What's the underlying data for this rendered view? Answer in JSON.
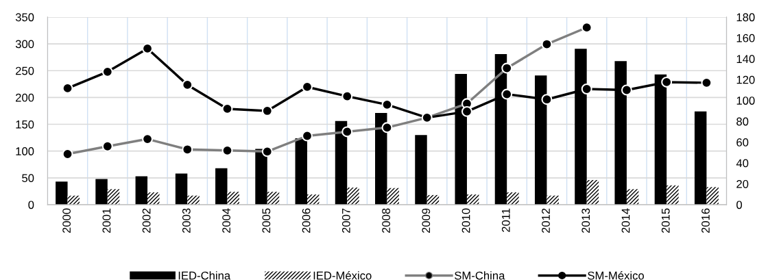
{
  "chart_data": {
    "type": "bar",
    "categories": [
      "2000",
      "2001",
      "2002",
      "2003",
      "2004",
      "2005",
      "2006",
      "2007",
      "2008",
      "2009",
      "2010",
      "2011",
      "2012",
      "2013",
      "2014",
      "2015",
      "2016"
    ],
    "series": [
      {
        "name": "IED-China",
        "color": "#000000",
        "values": [
          43,
          48,
          53,
          58,
          68,
          104,
          124,
          156,
          171,
          130,
          244,
          281,
          241,
          291,
          268,
          243,
          174
        ]
      },
      {
        "name": "IED-México",
        "color": "#000000",
        "values": [
          17,
          29,
          23,
          17,
          24,
          24,
          19,
          32,
          31,
          18,
          19,
          23,
          17,
          46,
          29,
          36,
          33
        ]
      },
      {
        "name": "SM-China",
        "type": "line",
        "axis": "y2",
        "color": "#7f7f7f",
        "values": [
          48.6,
          56,
          63,
          53,
          52,
          51,
          66,
          70,
          74,
          83.5,
          97,
          131,
          154,
          170,
          null,
          null,
          null
        ]
      },
      {
        "name": "SM-México",
        "type": "line",
        "axis": "y2",
        "color": "#000000",
        "values": [
          111.7,
          127.5,
          149.8,
          115,
          92,
          90,
          113,
          104,
          96,
          83.5,
          89.4,
          106,
          101,
          111,
          110,
          117.6,
          117
        ]
      }
    ],
    "ylim": [
      0,
      350
    ],
    "yticks": [
      0,
      50,
      100,
      150,
      200,
      250,
      300,
      350
    ],
    "y2lim": [
      0,
      180
    ],
    "y2ticks": [
      0,
      20,
      40,
      60,
      80,
      100,
      120,
      140,
      160,
      180
    ],
    "grid": true,
    "legend": "bottom",
    "marker": "circle",
    "line_style": "solid"
  }
}
